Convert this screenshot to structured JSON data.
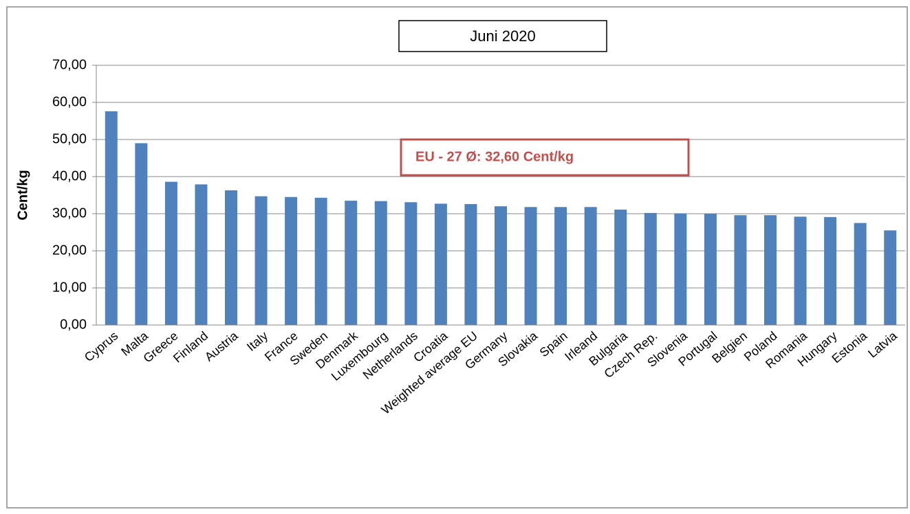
{
  "chart_data": {
    "type": "bar",
    "title": "Juni 2020",
    "y_label": "Cent/kg",
    "annotation": "EU - 27 Ø: 32,60 Cent/kg",
    "categories": [
      "Cyprus",
      "Malta",
      "Greece",
      "Finland",
      "Austria",
      "Italy",
      "France",
      "Sweden",
      "Denmark",
      "Luxembourg",
      "Netherlands",
      "Croatia",
      "Weighted average EU",
      "Germany",
      "Slovakia",
      "Spain",
      "Irleand",
      "Bulgaria",
      "Czech Rep.",
      "Slovenia",
      "Portugal",
      "Belgien",
      "Poland",
      "Romania",
      "Hungary",
      "Estonia",
      "Latvia"
    ],
    "values": [
      57.6,
      49.0,
      38.6,
      37.9,
      36.3,
      34.7,
      34.5,
      34.3,
      33.5,
      33.4,
      33.1,
      32.7,
      32.6,
      32.0,
      31.8,
      31.8,
      31.8,
      31.1,
      30.2,
      30.1,
      30.0,
      29.6,
      29.6,
      29.2,
      29.1,
      27.5,
      25.5
    ],
    "color": "#4f81bd",
    "ylim": [
      0,
      70
    ],
    "yticks": [
      {
        "value": 0,
        "label": "0,00"
      },
      {
        "value": 10,
        "label": "10,00"
      },
      {
        "value": 20,
        "label": "20,00"
      },
      {
        "value": 30,
        "label": "30,00"
      },
      {
        "value": 40,
        "label": "40,00"
      },
      {
        "value": 50,
        "label": "50,00"
      },
      {
        "value": 60,
        "label": "60,00"
      },
      {
        "value": 70,
        "label": "70,00"
      }
    ],
    "grid": true
  }
}
